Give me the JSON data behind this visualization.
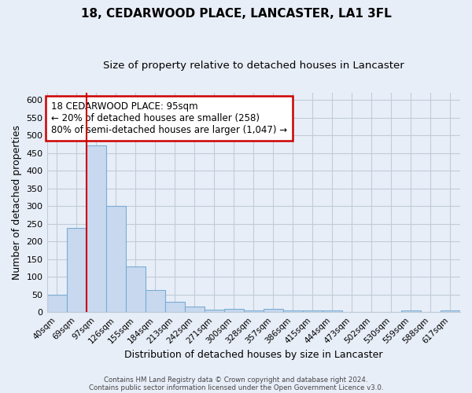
{
  "title": "18, CEDARWOOD PLACE, LANCASTER, LA1 3FL",
  "subtitle": "Size of property relative to detached houses in Lancaster",
  "xlabel": "Distribution of detached houses by size in Lancaster",
  "ylabel": "Number of detached properties",
  "bin_labels": [
    "40sqm",
    "69sqm",
    "97sqm",
    "126sqm",
    "155sqm",
    "184sqm",
    "213sqm",
    "242sqm",
    "271sqm",
    "300sqm",
    "328sqm",
    "357sqm",
    "386sqm",
    "415sqm",
    "444sqm",
    "473sqm",
    "502sqm",
    "530sqm",
    "559sqm",
    "588sqm",
    "617sqm"
  ],
  "bar_heights": [
    50,
    238,
    472,
    300,
    130,
    63,
    30,
    17,
    7,
    9,
    5,
    9,
    5,
    4,
    5,
    0,
    0,
    0,
    5,
    0,
    5
  ],
  "bar_color": "#c8d8ef",
  "bar_edge_color": "#7aadd4",
  "highlight_bar_index": 2,
  "highlight_color": "#cc0000",
  "annotation_text": "18 CEDARWOOD PLACE: 95sqm\n← 20% of detached houses are smaller (258)\n80% of semi-detached houses are larger (1,047) →",
  "annotation_box_color": "#ffffff",
  "annotation_box_edge": "#cc0000",
  "ylim": [
    0,
    620
  ],
  "yticks": [
    0,
    50,
    100,
    150,
    200,
    250,
    300,
    350,
    400,
    450,
    500,
    550,
    600
  ],
  "footer_line1": "Contains HM Land Registry data © Crown copyright and database right 2024.",
  "footer_line2": "Contains public sector information licensed under the Open Government Licence v3.0.",
  "bg_color": "#e8eef8",
  "plot_bg_color": "#e8eef8",
  "grid_color": "#c0ccd8",
  "title_fontsize": 11,
  "subtitle_fontsize": 9.5
}
